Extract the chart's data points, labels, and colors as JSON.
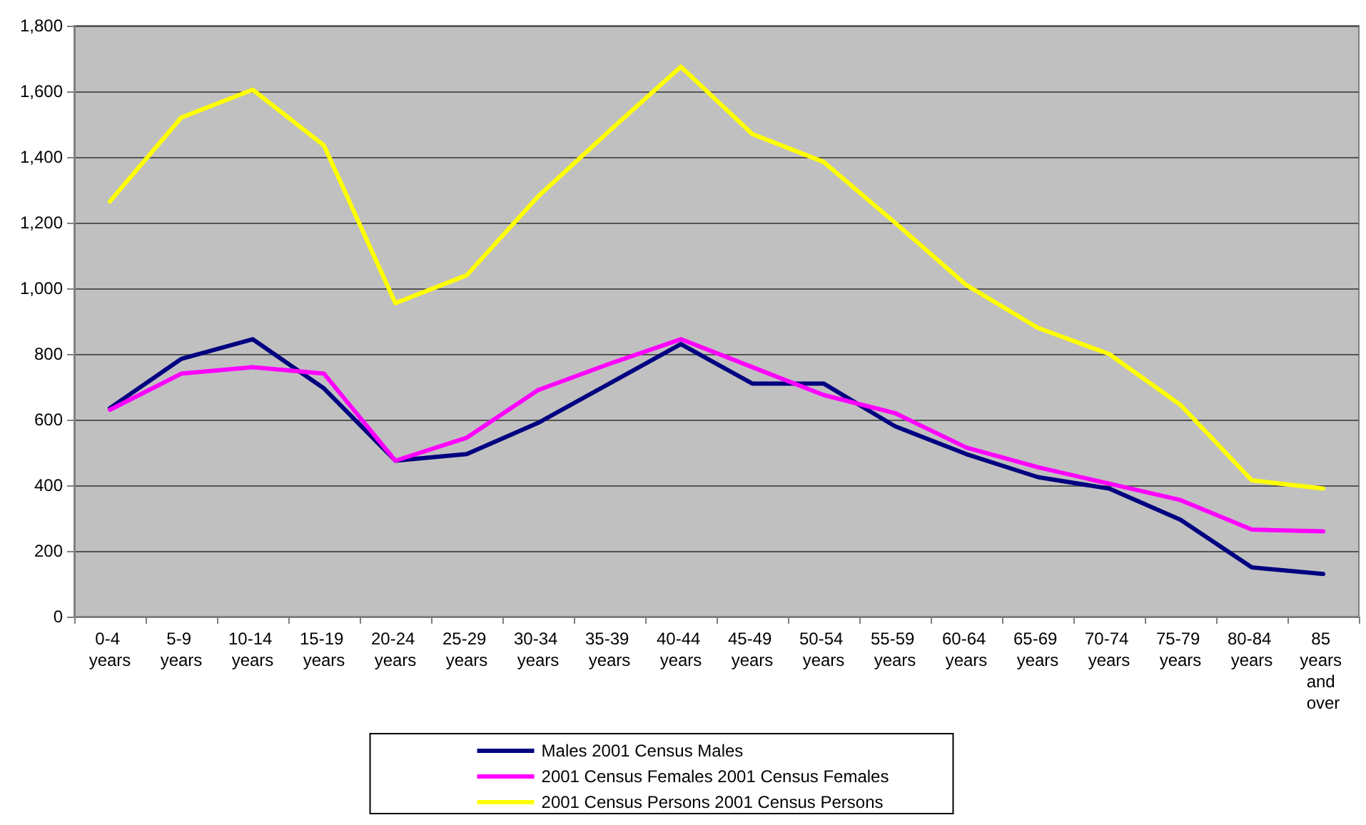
{
  "chart_data": {
    "type": "line",
    "categories": [
      "0-4 years",
      "5-9 years",
      "10-14 years",
      "15-19 years",
      "20-24 years",
      "25-29 years",
      "30-34 years",
      "35-39 years",
      "40-44 years",
      "45-49 years",
      "50-54 years",
      "55-59 years",
      "60-64 years",
      "65-69 years",
      "70-74 years",
      "75-79 years",
      "80-84 years",
      "85 years and over"
    ],
    "series": [
      {
        "name": "Males 2001 Census Males",
        "color": "#000080",
        "values": [
          635,
          785,
          845,
          695,
          475,
          495,
          590,
          710,
          830,
          710,
          710,
          580,
          495,
          425,
          390,
          295,
          150,
          130
        ]
      },
      {
        "name": "2001 Census Females 2001 Census Females",
        "color": "#ff00ff",
        "values": [
          630,
          740,
          760,
          740,
          475,
          545,
          690,
          770,
          845,
          760,
          675,
          620,
          515,
          455,
          405,
          355,
          265,
          260
        ]
      },
      {
        "name": "2001 Census Persons 2001 Census Persons",
        "color": "#ffff00",
        "values": [
          1265,
          1520,
          1605,
          1435,
          955,
          1040,
          1280,
          1480,
          1675,
          1470,
          1385,
          1200,
          1010,
          880,
          800,
          645,
          415,
          390
        ]
      }
    ],
    "ylim": [
      0,
      1800
    ],
    "yticks": [
      0,
      200,
      400,
      600,
      800,
      {
        "value": 1000,
        "label": "1,000"
      },
      {
        "value": 1200,
        "label": "1,200"
      },
      {
        "value": 1400,
        "label": "1,400"
      },
      {
        "value": 1600,
        "label": "1,600"
      },
      {
        "value": 1800,
        "label": "1,800"
      }
    ],
    "grid": "y",
    "legend": "bottom",
    "marker": "none",
    "line_style": "solid"
  }
}
